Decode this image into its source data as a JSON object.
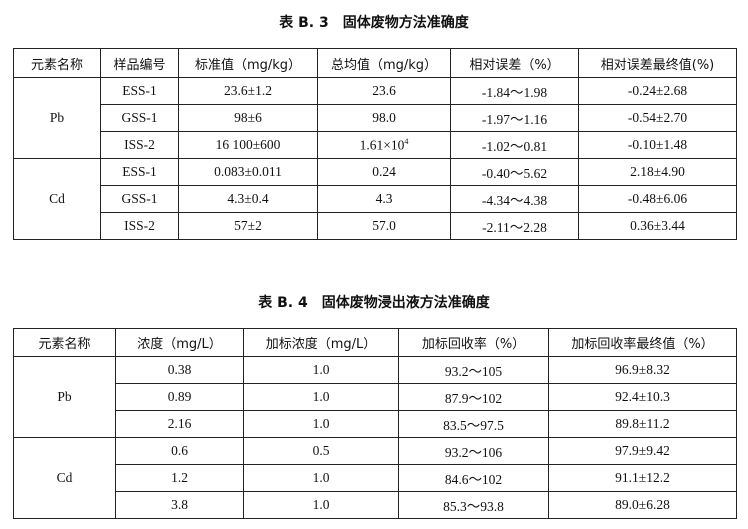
{
  "table_b3": {
    "title": "表 B. 3　固体废物方法准确度",
    "headers": [
      "元素名称",
      "样品编号",
      "标准值（mg/kg）",
      "总均值（mg/kg）",
      "相对误差（%）",
      "相对误差最终值(%)"
    ],
    "groups": [
      {
        "element": "Pb",
        "rows": [
          [
            "ESS-1",
            "23.6±1.2",
            "23.6",
            "-1.84～1.98",
            "-0.24±2.68"
          ],
          [
            "GSS-1",
            "98±6",
            "98.0",
            "-1.97～1.16",
            "-0.54±2.70"
          ],
          [
            "ISS-2",
            "16 100±600",
            "1.61×10",
            "-1.02～0.81",
            "-0.10±1.48"
          ]
        ]
      },
      {
        "element": "Cd",
        "rows": [
          [
            "ESS-1",
            "0.083±0.011",
            "0.24",
            "-0.40～5.62",
            "2.18±4.90"
          ],
          [
            "GSS-1",
            "4.3±0.4",
            "4.3",
            "-4.34～4.38",
            "-0.48±6.06"
          ],
          [
            "ISS-2",
            "57±2",
            "57.0",
            "-2.11～2.28",
            "0.36±3.44"
          ]
        ]
      }
    ],
    "exponent": "4"
  },
  "table_b4": {
    "title": "表 B. 4　固体废物浸出液方法准确度",
    "headers": [
      "元素名称",
      "浓度（mg/L）",
      "加标浓度（mg/L）",
      "加标回收率（%）",
      "加标回收率最终值（%）"
    ],
    "groups": [
      {
        "element": "Pb",
        "rows": [
          [
            "0.38",
            "1.0",
            "93.2～105",
            "96.9±8.32"
          ],
          [
            "0.89",
            "1.0",
            "87.9～102",
            "92.4±10.3"
          ],
          [
            "2.16",
            "1.0",
            "83.5～97.5",
            "89.8±11.2"
          ]
        ]
      },
      {
        "element": "Cd",
        "rows": [
          [
            "0.6",
            "0.5",
            "93.2～106",
            "97.9±9.42"
          ],
          [
            "1.2",
            "1.0",
            "84.6～102",
            "91.1±12.2"
          ],
          [
            "3.8",
            "1.0",
            "85.3～93.8",
            "89.0±6.28"
          ]
        ]
      }
    ]
  }
}
